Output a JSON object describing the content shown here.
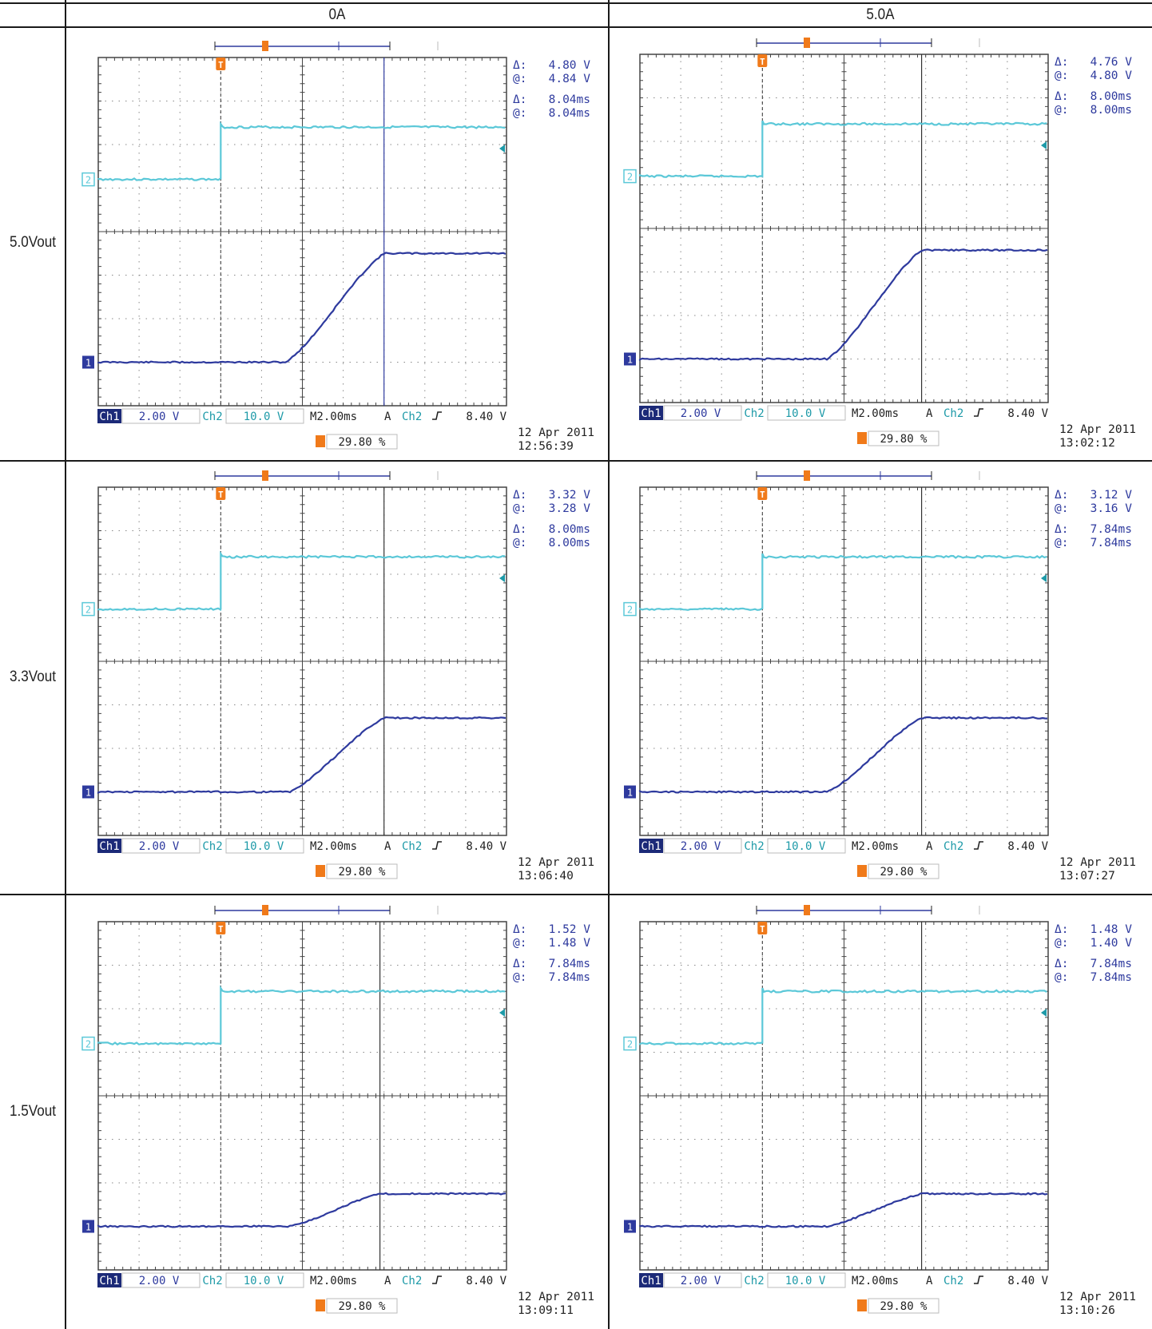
{
  "columns": [
    "0A",
    "5.0A"
  ],
  "rows": [
    "5.0Vout",
    "3.3Vout",
    "1.5Vout"
  ],
  "colors": {
    "ch1": "#2e3a9e",
    "ch2": "#5bc8d8",
    "trigger": "#f07a1a",
    "grid": "#555555"
  },
  "chart_data": [
    {
      "type": "line",
      "row": "5.0Vout",
      "column": "0A",
      "readouts": {
        "v_delta": "4.80 V",
        "v_at": "4.84 V",
        "t_delta": "8.04ms",
        "t_at": "8.04ms"
      },
      "settings": {
        "ch1_label": "Ch1",
        "ch1_scale": "2.00 V",
        "ch2_label": "Ch2",
        "ch2_scale": "10.0 V",
        "timebase": "M 2.00ms",
        "trigger_mode": "A",
        "trigger_src": "Ch2",
        "trigger_level": "8.40 V",
        "trigger_pos": "29.80 %"
      },
      "date": "12 Apr 2011",
      "time": "12:56:39",
      "x_divisions": 10,
      "y_divisions": 8,
      "trigger_div": 3.0,
      "ch1": {
        "name": "1",
        "base_div": 1.0,
        "final_div": 3.5,
        "ramp_start_div": 4.6,
        "ramp_end_div": 7.0
      },
      "ch2": {
        "name": "2",
        "low_div": 5.2,
        "high_div": 6.4
      },
      "cursor_div": 7.0
    },
    {
      "type": "line",
      "row": "5.0Vout",
      "column": "5.0A",
      "readouts": {
        "v_delta": "4.76 V",
        "v_at": "4.80 V",
        "t_delta": "8.00ms",
        "t_at": "8.00ms"
      },
      "settings": {
        "ch1_label": "Ch1",
        "ch1_scale": "2.00 V",
        "ch2_label": "Ch2",
        "ch2_scale": "10.0 V",
        "timebase": "M 2.00ms",
        "trigger_mode": "A",
        "trigger_src": "Ch2",
        "trigger_level": "8.40 V",
        "trigger_pos": "29.80 %"
      },
      "date": "12 Apr 2011",
      "time": "13:02:12",
      "x_divisions": 10,
      "y_divisions": 8,
      "trigger_div": 3.0,
      "ch1": {
        "name": "1",
        "base_div": 1.0,
        "final_div": 3.5,
        "ramp_start_div": 4.6,
        "ramp_end_div": 6.9
      },
      "ch2": {
        "name": "2",
        "low_div": 5.2,
        "high_div": 6.4
      },
      "cursor_div": 6.9
    },
    {
      "type": "line",
      "row": "3.3Vout",
      "column": "0A",
      "readouts": {
        "v_delta": "3.32 V",
        "v_at": "3.28 V",
        "t_delta": "8.00ms",
        "t_at": "8.00ms"
      },
      "settings": {
        "ch1_label": "Ch1",
        "ch1_scale": "2.00 V",
        "ch2_label": "Ch2",
        "ch2_scale": "10.0 V",
        "timebase": "M 2.00ms",
        "trigger_mode": "A",
        "trigger_src": "Ch2",
        "trigger_level": "8.40 V",
        "trigger_pos": "29.80 %"
      },
      "date": "12 Apr 2011",
      "time": "13:06:40",
      "x_divisions": 10,
      "y_divisions": 8,
      "trigger_div": 3.0,
      "ch1": {
        "name": "1",
        "base_div": 1.0,
        "final_div": 2.7,
        "ramp_start_div": 4.7,
        "ramp_end_div": 7.0
      },
      "ch2": {
        "name": "2",
        "low_div": 5.2,
        "high_div": 6.4
      },
      "cursor_div": 7.0
    },
    {
      "type": "line",
      "row": "3.3Vout",
      "column": "5.0A",
      "readouts": {
        "v_delta": "3.12 V",
        "v_at": "3.16 V",
        "t_delta": "7.84ms",
        "t_at": "7.84ms"
      },
      "settings": {
        "ch1_label": "Ch1",
        "ch1_scale": "2.00 V",
        "ch2_label": "Ch2",
        "ch2_scale": "10.0 V",
        "timebase": "M 2.00ms",
        "trigger_mode": "A",
        "trigger_src": "Ch2",
        "trigger_level": "8.40 V",
        "trigger_pos": "29.80 %"
      },
      "date": "12 Apr 2011",
      "time": "13:07:27",
      "x_divisions": 10,
      "y_divisions": 8,
      "trigger_div": 3.0,
      "ch1": {
        "name": "1",
        "base_div": 1.0,
        "final_div": 2.7,
        "ramp_start_div": 4.6,
        "ramp_end_div": 6.9
      },
      "ch2": {
        "name": "2",
        "low_div": 5.2,
        "high_div": 6.4
      },
      "cursor_div": 6.9
    },
    {
      "type": "line",
      "row": "1.5Vout",
      "column": "0A",
      "readouts": {
        "v_delta": "1.52 V",
        "v_at": "1.48 V",
        "t_delta": "7.84ms",
        "t_at": "7.84ms"
      },
      "settings": {
        "ch1_label": "Ch1",
        "ch1_scale": "2.00 V",
        "ch2_label": "Ch2",
        "ch2_scale": "10.0 V",
        "timebase": "M 2.00ms",
        "trigger_mode": "A",
        "trigger_src": "Ch2",
        "trigger_level": "8.40 V",
        "trigger_pos": "29.80 %"
      },
      "date": "12 Apr 2011",
      "time": "13:09:11",
      "x_divisions": 10,
      "y_divisions": 8,
      "trigger_div": 3.0,
      "ch1": {
        "name": "1",
        "base_div": 1.0,
        "final_div": 1.75,
        "ramp_start_div": 4.7,
        "ramp_end_div": 6.9
      },
      "ch2": {
        "name": "2",
        "low_div": 5.2,
        "high_div": 6.4
      },
      "cursor_div": 6.9
    },
    {
      "type": "line",
      "row": "1.5Vout",
      "column": "5.0A",
      "readouts": {
        "v_delta": "1.48 V",
        "v_at": "1.40 V",
        "t_delta": "7.84ms",
        "t_at": "7.84ms"
      },
      "settings": {
        "ch1_label": "Ch1",
        "ch1_scale": "2.00 V",
        "ch2_label": "Ch2",
        "ch2_scale": "10.0 V",
        "timebase": "M 2.00ms",
        "trigger_mode": "A",
        "trigger_src": "Ch2",
        "trigger_level": "8.40 V",
        "trigger_pos": "29.80 %"
      },
      "date": "12 Apr 2011",
      "time": "13:10:26",
      "x_divisions": 10,
      "y_divisions": 8,
      "trigger_div": 3.0,
      "ch1": {
        "name": "1",
        "base_div": 1.0,
        "final_div": 1.75,
        "ramp_start_div": 4.6,
        "ramp_end_div": 6.9
      },
      "ch2": {
        "name": "2",
        "low_div": 5.2,
        "high_div": 6.4
      },
      "cursor_div": 6.9
    }
  ]
}
